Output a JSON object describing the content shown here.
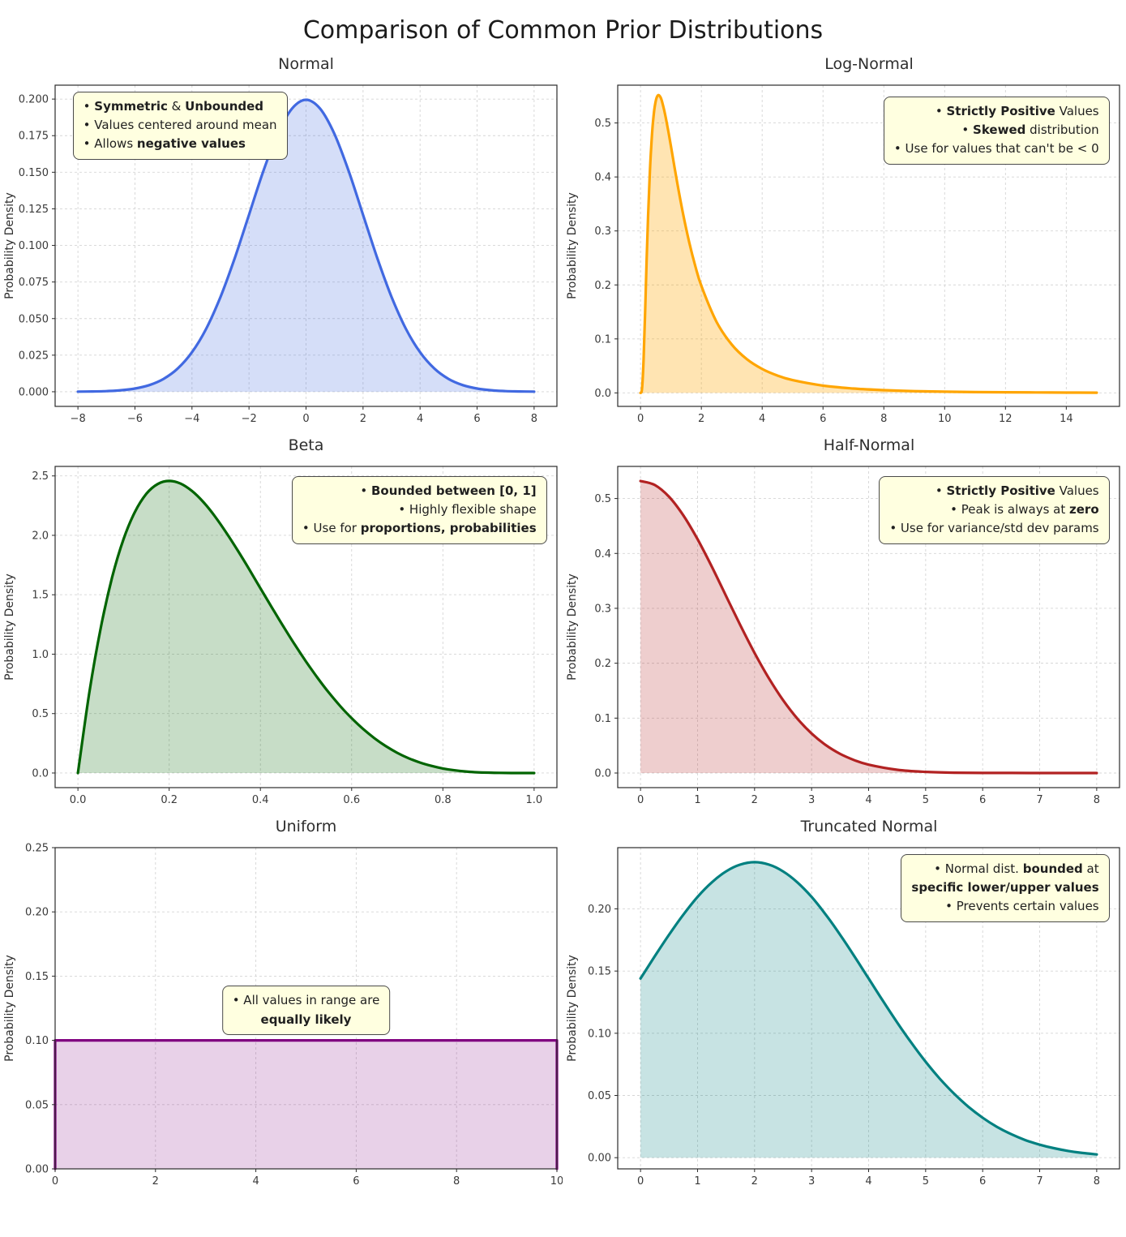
{
  "header": {
    "title": "Comparison of Common Prior Distributions"
  },
  "chart_data": [
    {
      "type": "area",
      "title": "Normal",
      "ylabel": "Probability Density",
      "color": "#4169e1",
      "fill": "rgba(65,105,225,0.22)",
      "smooth": true,
      "xlim": [
        -8.8,
        8.8
      ],
      "ylim": [
        -0.01,
        0.2095
      ],
      "xticks": {
        "values": [
          -8,
          -6,
          -4,
          -2,
          0,
          2,
          4,
          6,
          8
        ],
        "labels": [
          "−8",
          "−6",
          "−4",
          "−2",
          "0",
          "2",
          "4",
          "6",
          "8"
        ]
      },
      "yticks": {
        "values": [
          0,
          0.025,
          0.05,
          0.075,
          0.1,
          0.125,
          0.15,
          0.175,
          0.2
        ],
        "labels": [
          "0.000",
          "0.025",
          "0.050",
          "0.075",
          "0.100",
          "0.125",
          "0.150",
          "0.175",
          "0.200"
        ]
      },
      "x": [
        -8,
        -7.5,
        -7,
        -6.5,
        -6,
        -5.5,
        -5,
        -4.5,
        -4,
        -3.5,
        -3,
        -2.5,
        -2,
        -1.5,
        -1,
        -0.5,
        0,
        0.5,
        1,
        1.5,
        2,
        2.5,
        3,
        3.5,
        4,
        4.5,
        5,
        5.5,
        6,
        6.5,
        7,
        7.5,
        8
      ],
      "y": [
        7e-05,
        0.00018,
        0.00044,
        0.00102,
        0.00222,
        0.00455,
        0.00876,
        0.0159,
        0.027,
        0.0431,
        0.0648,
        0.0913,
        0.121,
        0.1506,
        0.176,
        0.1933,
        0.1995,
        0.1933,
        0.176,
        0.1506,
        0.121,
        0.0913,
        0.0648,
        0.0431,
        0.027,
        0.0159,
        0.00876,
        0.00455,
        0.00222,
        0.00102,
        0.00044,
        0.00018,
        7e-05
      ],
      "annotation": {
        "align": "left",
        "x": 0.035,
        "y": 0.02,
        "lines": [
          [
            {
              "t": "• ",
              "b": false
            },
            {
              "t": "Symmetric",
              "b": true
            },
            {
              "t": " & ",
              "b": false
            },
            {
              "t": "Unbounded",
              "b": true
            }
          ],
          [
            {
              "t": "• Values centered around mean",
              "b": false
            }
          ],
          [
            {
              "t": "• Allows ",
              "b": false
            },
            {
              "t": "negative values",
              "b": true
            }
          ]
        ]
      }
    },
    {
      "type": "area",
      "title": "Log-Normal",
      "ylabel": "Probability Density",
      "color": "#ffa500",
      "fill": "rgba(255,165,0,0.3)",
      "smooth": true,
      "xlim": [
        -0.75,
        15.75
      ],
      "ylim": [
        -0.025,
        0.57
      ],
      "xticks": {
        "values": [
          0,
          2,
          4,
          6,
          8,
          10,
          12,
          14
        ],
        "labels": [
          "0",
          "2",
          "4",
          "6",
          "8",
          "10",
          "12",
          "14"
        ]
      },
      "yticks": {
        "values": [
          0,
          0.1,
          0.2,
          0.3,
          0.4,
          0.5
        ],
        "labels": [
          "0.0",
          "0.1",
          "0.2",
          "0.3",
          "0.4",
          "0.5"
        ]
      },
      "x": [
        0,
        0.05,
        0.1,
        0.15,
        0.2,
        0.25,
        0.3,
        0.35,
        0.4,
        0.45,
        0.5,
        0.55,
        0.6,
        0.65,
        0.7,
        0.8,
        0.9,
        1.0,
        1.2,
        1.4,
        1.6,
        1.8,
        2.0,
        2.5,
        3.0,
        3.5,
        4.0,
        4.5,
        5.0,
        6.0,
        7.0,
        8.0,
        9.0,
        10.0,
        11.0,
        12.0,
        13.0,
        14.0,
        15.0
      ],
      "y": [
        0,
        0.008,
        0.0616,
        0.149,
        0.2434,
        0.3291,
        0.3999,
        0.4549,
        0.4953,
        0.5232,
        0.5405,
        0.5494,
        0.5515,
        0.5483,
        0.5411,
        0.5183,
        0.4889,
        0.4565,
        0.391,
        0.331,
        0.2789,
        0.235,
        0.1983,
        0.1316,
        0.0895,
        0.0623,
        0.0443,
        0.0321,
        0.0237,
        0.0135,
        0.0081,
        0.0051,
        0.0033,
        0.0022,
        0.0015,
        0.0011,
        0.0008,
        0.0006,
        0.0004
      ],
      "annotation": {
        "align": "right",
        "x": 0.02,
        "y": 0.035,
        "lines": [
          [
            {
              "t": "• ",
              "b": false
            },
            {
              "t": "Strictly Positive",
              "b": true
            },
            {
              "t": " Values",
              "b": false
            }
          ],
          [
            {
              "t": "• ",
              "b": false
            },
            {
              "t": "Skewed",
              "b": true
            },
            {
              "t": " distribution",
              "b": false
            }
          ],
          [
            {
              "t": "• Use for values that can't be < 0",
              "b": false
            }
          ]
        ]
      }
    },
    {
      "type": "area",
      "title": "Beta",
      "ylabel": "Probability Density",
      "color": "#006400",
      "fill": "rgba(0,100,0,0.22)",
      "smooth": true,
      "xlim": [
        -0.05,
        1.05
      ],
      "ylim": [
        -0.123,
        2.58
      ],
      "xticks": {
        "values": [
          0,
          0.2,
          0.4,
          0.6,
          0.8,
          1.0
        ],
        "labels": [
          "0.0",
          "0.2",
          "0.4",
          "0.6",
          "0.8",
          "1.0"
        ]
      },
      "yticks": {
        "values": [
          0,
          0.5,
          1.0,
          1.5,
          2.0,
          2.5
        ],
        "labels": [
          "0.0",
          "0.5",
          "1.0",
          "1.5",
          "2.0",
          "2.5"
        ]
      },
      "x": [
        0,
        0.025,
        0.05,
        0.075,
        0.1,
        0.125,
        0.15,
        0.175,
        0.2,
        0.225,
        0.25,
        0.275,
        0.3,
        0.325,
        0.35,
        0.375,
        0.4,
        0.425,
        0.45,
        0.475,
        0.5,
        0.525,
        0.55,
        0.575,
        0.6,
        0.625,
        0.65,
        0.675,
        0.7,
        0.725,
        0.75,
        0.775,
        0.8,
        0.825,
        0.85,
        0.875,
        0.9,
        0.925,
        0.95,
        0.975,
        1.0
      ],
      "y": [
        0,
        0.678,
        1.222,
        1.647,
        1.968,
        2.198,
        2.349,
        2.432,
        2.458,
        2.435,
        2.373,
        2.28,
        2.161,
        2.024,
        1.874,
        1.717,
        1.555,
        1.394,
        1.235,
        1.083,
        0.938,
        0.802,
        0.677,
        0.563,
        0.461,
        0.371,
        0.293,
        0.226,
        0.17,
        0.124,
        0.088,
        0.06,
        0.038,
        0.023,
        0.013,
        0.006,
        0.003,
        0.001,
        0.0002,
        0.0,
        0.0
      ],
      "annotation": {
        "align": "right",
        "x": 0.02,
        "y": 0.03,
        "lines": [
          [
            {
              "t": "• ",
              "b": false
            },
            {
              "t": "Bounded between [0, 1]",
              "b": true
            }
          ],
          [
            {
              "t": "• Highly flexible shape",
              "b": false
            }
          ],
          [
            {
              "t": "• Use for ",
              "b": false
            },
            {
              "t": "proportions, probabilities",
              "b": true
            }
          ]
        ]
      }
    },
    {
      "type": "area",
      "title": "Half-Normal",
      "ylabel": "Probability Density",
      "color": "#b22222",
      "fill": "rgba(178,34,34,0.22)",
      "smooth": true,
      "xlim": [
        -0.4,
        8.4
      ],
      "ylim": [
        -0.0266,
        0.5585
      ],
      "xticks": {
        "values": [
          0,
          1,
          2,
          3,
          4,
          5,
          6,
          7,
          8
        ],
        "labels": [
          "0",
          "1",
          "2",
          "3",
          "4",
          "5",
          "6",
          "7",
          "8"
        ]
      },
      "yticks": {
        "values": [
          0,
          0.1,
          0.2,
          0.3,
          0.4,
          0.5
        ],
        "labels": [
          "0.0",
          "0.1",
          "0.2",
          "0.3",
          "0.4",
          "0.5"
        ]
      },
      "x": [
        0,
        0.25,
        0.5,
        0.75,
        1,
        1.25,
        1.5,
        1.75,
        2,
        2.25,
        2.5,
        2.75,
        3,
        3.25,
        3.5,
        3.75,
        4,
        4.5,
        5,
        5.5,
        6,
        6.5,
        7,
        7.5,
        8
      ],
      "y": [
        0.5319,
        0.5246,
        0.5032,
        0.4694,
        0.4259,
        0.3759,
        0.3226,
        0.2693,
        0.2187,
        0.1727,
        0.1327,
        0.0991,
        0.072,
        0.0508,
        0.0349,
        0.0234,
        0.0152,
        0.0059,
        0.0021,
        0.0006,
        0.0002,
        0.0001,
        0.0,
        0.0,
        0.0
      ],
      "annotation": {
        "align": "right",
        "x": 0.02,
        "y": 0.03,
        "lines": [
          [
            {
              "t": "• ",
              "b": false
            },
            {
              "t": "Strictly Positive",
              "b": true
            },
            {
              "t": " Values",
              "b": false
            }
          ],
          [
            {
              "t": "• Peak is always at ",
              "b": false
            },
            {
              "t": "zero",
              "b": true
            }
          ],
          [
            {
              "t": "• Use for variance/std dev params",
              "b": false
            }
          ]
        ]
      }
    },
    {
      "type": "area",
      "title": "Uniform",
      "ylabel": "Probability Density",
      "color": "#800080",
      "fill": "rgba(128,0,128,0.18)",
      "smooth": false,
      "xlim": [
        0,
        10
      ],
      "ylim": [
        0,
        0.25
      ],
      "xticks": {
        "values": [
          0,
          2,
          4,
          6,
          8,
          10
        ],
        "labels": [
          "0",
          "2",
          "4",
          "6",
          "8",
          "10"
        ]
      },
      "yticks": {
        "values": [
          0,
          0.05,
          0.1,
          0.15,
          0.2,
          0.25
        ],
        "labels": [
          "0.00",
          "0.05",
          "0.10",
          "0.15",
          "0.20",
          "0.25"
        ]
      },
      "x": [
        0,
        0,
        10,
        10
      ],
      "y": [
        0,
        0.1,
        0.1,
        0
      ],
      "annotation": {
        "align": "center",
        "x": 0.5,
        "y": 0.43,
        "lines": [
          [
            {
              "t": "• All values in range are",
              "b": false
            }
          ],
          [
            {
              "t": "equally likely",
              "b": true
            }
          ]
        ]
      }
    },
    {
      "type": "area",
      "title": "Truncated Normal",
      "ylabel": "Probability Density",
      "color": "#008080",
      "fill": "rgba(0,128,128,0.22)",
      "smooth": true,
      "xlim": [
        -0.4,
        8.4
      ],
      "ylim": [
        -0.009,
        0.2492
      ],
      "xticks": {
        "values": [
          0,
          1,
          2,
          3,
          4,
          5,
          6,
          7,
          8
        ],
        "labels": [
          "0",
          "1",
          "2",
          "3",
          "4",
          "5",
          "6",
          "7",
          "8"
        ]
      },
      "yticks": {
        "values": [
          0,
          0.05,
          0.1,
          0.15,
          0.2
        ],
        "labels": [
          "0.00",
          "0.05",
          "0.10",
          "0.15",
          "0.20"
        ]
      },
      "x": [
        0,
        0.25,
        0.5,
        0.75,
        1,
        1.25,
        1.5,
        1.75,
        2,
        2.25,
        2.5,
        2.75,
        3,
        3.25,
        3.5,
        3.75,
        4,
        4.25,
        4.5,
        4.75,
        5,
        5.25,
        5.5,
        5.75,
        6,
        6.25,
        6.5,
        6.75,
        7,
        7.25,
        7.5,
        7.75,
        8
      ],
      "y": [
        0.144,
        0.1619,
        0.1792,
        0.1953,
        0.2096,
        0.2213,
        0.2301,
        0.2356,
        0.2375,
        0.2356,
        0.2301,
        0.2213,
        0.2096,
        0.1953,
        0.1792,
        0.1619,
        0.144,
        0.1261,
        0.1087,
        0.0923,
        0.0771,
        0.0634,
        0.0514,
        0.0409,
        0.0321,
        0.0248,
        0.0189,
        0.0141,
        0.0104,
        0.0076,
        0.0054,
        0.0038,
        0.0026
      ],
      "annotation": {
        "align": "right",
        "x": 0.02,
        "y": 0.02,
        "lines": [
          [
            {
              "t": "• Normal dist. ",
              "b": false
            },
            {
              "t": "bounded",
              "b": true
            },
            {
              "t": " at",
              "b": false
            }
          ],
          [
            {
              "t": "specific lower/upper values",
              "b": true
            }
          ],
          [
            {
              "t": "• Prevents certain values",
              "b": false
            }
          ]
        ]
      }
    }
  ]
}
